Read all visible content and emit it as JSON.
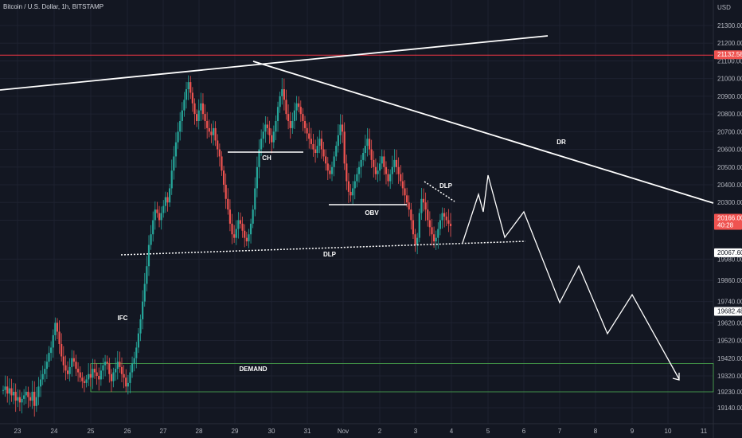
{
  "header": {
    "title": "Bitcoin / U.S. Dollar, 1h, BITSTAMP"
  },
  "colors": {
    "background": "#131722",
    "grid": "#1e2230",
    "text": "#b2b5be",
    "bull": "#26a69a",
    "bear": "#ef5350",
    "resistance_line": "#f23645",
    "drawing": "#ffffff",
    "demand_zone": "#4caf50",
    "price_badge_red": "#ef5350",
    "price_badge_white": "#ffffff"
  },
  "chart_data": {
    "type": "candlestick",
    "symbol": "Bitcoin / U.S. Dollar",
    "timeframe": "1h",
    "exchange": "BITSTAMP",
    "currency_label": "USD",
    "y_ticks": [
      21300,
      21200,
      21100,
      21000,
      20900,
      20800,
      20700,
      20600,
      20500,
      20400,
      20300,
      20200,
      19980,
      19860,
      19740,
      19620,
      19520,
      19420,
      19320,
      19230,
      19140
    ],
    "y_tick_labels": [
      "21300.00",
      "21200.00",
      "21100.00",
      "21000.00",
      "20900.00",
      "20800.00",
      "20700.00",
      "20600.00",
      "20500.00",
      "20400.00",
      "20300.00",
      "20200.00",
      "19980.00",
      "19860.00",
      "19740.00",
      "19620.00",
      "19520.00",
      "19420.00",
      "19320.00",
      "19230.00",
      "19140.00"
    ],
    "x_ticks": [
      "23",
      "24",
      "25",
      "26",
      "27",
      "28",
      "29",
      "30",
      "31",
      "Nov",
      "2",
      "3",
      "4",
      "5",
      "6",
      "7",
      "8",
      "9",
      "10",
      "11"
    ],
    "price_badges": [
      {
        "label": "21132.58",
        "style": "red"
      },
      {
        "label": "20166.00",
        "sublabel": "40:28",
        "style": "red"
      },
      {
        "label": "20067.60",
        "style": "white"
      },
      {
        "label": "19682.48",
        "style": "white"
      }
    ],
    "horizontal_line_price": 21132.58,
    "candle_close_series": [
      19240,
      19260,
      19220,
      19250,
      19210,
      19230,
      19180,
      19200,
      19170,
      19190,
      19210,
      19230,
      19200,
      19180,
      19230,
      19150,
      19200,
      19260,
      19300,
      19330,
      19360,
      19400,
      19450,
      19480,
      19550,
      19620,
      19570,
      19500,
      19430,
      19380,
      19350,
      19330,
      19370,
      19420,
      19400,
      19360,
      19340,
      19310,
      19290,
      19280,
      19300,
      19330,
      19310,
      19360,
      19340,
      19320,
      19300,
      19350,
      19380,
      19400,
      19390,
      19330,
      19290,
      19340,
      19360,
      19400,
      19370,
      19330,
      19310,
      19260,
      19280,
      19340,
      19390,
      19420,
      19480,
      19560,
      19640,
      19740,
      19840,
      19940,
      20060,
      20120,
      20200,
      20260,
      20240,
      20200,
      20240,
      20280,
      20330,
      20300,
      20380,
      20480,
      20560,
      20640,
      20700,
      20760,
      20820,
      20880,
      20940,
      20980,
      20920,
      20860,
      20800,
      20760,
      20820,
      20860,
      20800,
      20760,
      20720,
      20700,
      20680,
      20720,
      20650,
      20600,
      20560,
      20480,
      20400,
      20320,
      20260,
      20180,
      20120,
      20100,
      20150,
      20200,
      20180,
      20140,
      20100,
      20080,
      20120,
      20180,
      20260,
      20380,
      20500,
      20600,
      20660,
      20700,
      20740,
      20720,
      20680,
      20640,
      20700,
      20760,
      20840,
      20900,
      20940,
      20880,
      20800,
      20760,
      20720,
      20760,
      20820,
      20860,
      20840,
      20800,
      20760,
      20720,
      20690,
      20660,
      20630,
      20600,
      20580,
      20620,
      20660,
      20600,
      20560,
      20520,
      20480,
      20460,
      20500,
      20560,
      20620,
      20680,
      20740,
      20700,
      20520,
      20420,
      20360,
      20340,
      20380,
      20420,
      20460,
      20500,
      20540,
      20580,
      20620,
      20660,
      20600,
      20540,
      20500,
      20460,
      20480,
      20520,
      20560,
      20500,
      20460,
      20420,
      20460,
      20500,
      20540,
      20500,
      20460,
      20420,
      20380,
      20340,
      20300,
      20260,
      20200,
      20120,
      20060,
      20100,
      20240,
      20320,
      20300,
      20260,
      20200,
      20160,
      20120,
      20080,
      20100,
      20150,
      20200,
      20240,
      20220,
      20200,
      20180,
      20166
    ],
    "annotations": [
      {
        "label": "CH"
      },
      {
        "label": "OBV"
      },
      {
        "label": "DLP"
      },
      {
        "label": "DLP"
      },
      {
        "label": "DR"
      },
      {
        "label": "IFC"
      },
      {
        "label": "DEMAND"
      }
    ],
    "projection_path": [
      20060,
      20300,
      20220,
      20380,
      20120,
      20200,
      19700,
      19900,
      19500,
      19720,
      19300
    ],
    "grid": true
  }
}
